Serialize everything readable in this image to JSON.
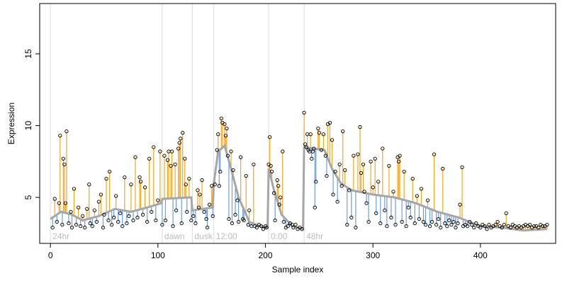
{
  "chart_data": {
    "type": "scatter",
    "title": "",
    "xlabel": "Sample index",
    "ylabel": "Expression",
    "xlim": [
      -10,
      470
    ],
    "ylim": [
      1.8,
      18.5
    ],
    "x_ticks": [
      0,
      100,
      200,
      300,
      400
    ],
    "y_ticks": [
      5,
      10,
      15
    ],
    "x_tick_labels": [
      "0",
      "100",
      "200",
      "300",
      "400"
    ],
    "y_tick_labels": [
      "5",
      "10",
      "15"
    ],
    "grid": false,
    "legend": "none",
    "colors": {
      "fitted": "#a6a6a6",
      "residual_above": "#f5a623",
      "residual_below": "#6f9ed8",
      "points": "#000000",
      "segment_lines": "#dcdcdc",
      "segment_labels": "#bdbdbd"
    },
    "segments": [
      {
        "x": 0,
        "label": "24hr"
      },
      {
        "x": 104,
        "label": "dawn"
      },
      {
        "x": 132,
        "label": "dusk"
      },
      {
        "x": 152,
        "label": "12:00"
      },
      {
        "x": 203,
        "label": "0:00"
      },
      {
        "x": 236,
        "label": "48hr"
      }
    ],
    "fitted_knots": [
      [
        0,
        3.5
      ],
      [
        10,
        4.0
      ],
      [
        20,
        3.8
      ],
      [
        30,
        3.4
      ],
      [
        45,
        3.7
      ],
      [
        60,
        4.2
      ],
      [
        75,
        4.0
      ],
      [
        90,
        4.3
      ],
      [
        103,
        4.6
      ],
      [
        104,
        4.9
      ],
      [
        131,
        5.0
      ],
      [
        132,
        4.1
      ],
      [
        151,
        4.3
      ],
      [
        152,
        6.0
      ],
      [
        156,
        8.2
      ],
      [
        162,
        8.6
      ],
      [
        168,
        7.0
      ],
      [
        175,
        5.0
      ],
      [
        185,
        3.3
      ],
      [
        195,
        3.0
      ],
      [
        202,
        2.9
      ],
      [
        203,
        7.0
      ],
      [
        208,
        5.5
      ],
      [
        215,
        3.8
      ],
      [
        225,
        3.0
      ],
      [
        235,
        2.8
      ],
      [
        236,
        8.5
      ],
      [
        245,
        8.4
      ],
      [
        255,
        8.3
      ],
      [
        262,
        7.0
      ],
      [
        270,
        6.0
      ],
      [
        280,
        5.5
      ],
      [
        300,
        5.2
      ],
      [
        320,
        5.0
      ],
      [
        340,
        4.6
      ],
      [
        360,
        4.0
      ],
      [
        380,
        3.6
      ],
      [
        400,
        3.0
      ],
      [
        420,
        2.9
      ],
      [
        440,
        2.7
      ],
      [
        462,
        2.8
      ]
    ],
    "points": [
      [
        2,
        2.9
      ],
      [
        4,
        4.9
      ],
      [
        6,
        3.3
      ],
      [
        8,
        4.6
      ],
      [
        9,
        9.3
      ],
      [
        11,
        3.1
      ],
      [
        12,
        7.7
      ],
      [
        13,
        7.3
      ],
      [
        14,
        4.6
      ],
      [
        15,
        9.6
      ],
      [
        17,
        3.2
      ],
      [
        19,
        4.0
      ],
      [
        20,
        2.9
      ],
      [
        22,
        5.6
      ],
      [
        24,
        3.1
      ],
      [
        26,
        4.3
      ],
      [
        28,
        3.0
      ],
      [
        30,
        3.7
      ],
      [
        32,
        2.9
      ],
      [
        34,
        4.2
      ],
      [
        36,
        5.9
      ],
      [
        37,
        3.2
      ],
      [
        39,
        3.0
      ],
      [
        41,
        4.1
      ],
      [
        43,
        3.3
      ],
      [
        45,
        4.7
      ],
      [
        47,
        5.2
      ],
      [
        49,
        2.9
      ],
      [
        50,
        3.8
      ],
      [
        52,
        6.3
      ],
      [
        54,
        3.4
      ],
      [
        55,
        6.8
      ],
      [
        57,
        3.1
      ],
      [
        59,
        3.6
      ],
      [
        61,
        5.1
      ],
      [
        63,
        3.3
      ],
      [
        65,
        3.9
      ],
      [
        67,
        3.0
      ],
      [
        69,
        6.4
      ],
      [
        71,
        3.2
      ],
      [
        73,
        3.7
      ],
      [
        75,
        5.9
      ],
      [
        77,
        3.4
      ],
      [
        79,
        7.8
      ],
      [
        81,
        3.6
      ],
      [
        83,
        6.4
      ],
      [
        84,
        6.1
      ],
      [
        86,
        3.8
      ],
      [
        88,
        5.7
      ],
      [
        90,
        3.3
      ],
      [
        92,
        7.7
      ],
      [
        94,
        4.0
      ],
      [
        96,
        8.5
      ],
      [
        98,
        3.4
      ],
      [
        100,
        4.8
      ],
      [
        102,
        8.2
      ],
      [
        104,
        3.1
      ],
      [
        106,
        7.9
      ],
      [
        107,
        3.4
      ],
      [
        109,
        7.6
      ],
      [
        110,
        8.2
      ],
      [
        112,
        7.2
      ],
      [
        113,
        8.2
      ],
      [
        114,
        3.0
      ],
      [
        116,
        7.3
      ],
      [
        117,
        4.1
      ],
      [
        119,
        8.4
      ],
      [
        120,
        8.8
      ],
      [
        121,
        9.1
      ],
      [
        122,
        3.2
      ],
      [
        123,
        9.5
      ],
      [
        125,
        7.7
      ],
      [
        126,
        5.9
      ],
      [
        127,
        4.0
      ],
      [
        129,
        6.3
      ],
      [
        131,
        3.4
      ],
      [
        133,
        3.7
      ],
      [
        135,
        3.2
      ],
      [
        137,
        5.5
      ],
      [
        138,
        4.3
      ],
      [
        139,
        5.2
      ],
      [
        141,
        6.2
      ],
      [
        143,
        4.0
      ],
      [
        145,
        3.5
      ],
      [
        146,
        2.9
      ],
      [
        148,
        4.5
      ],
      [
        150,
        5.8
      ],
      [
        151,
        3.7
      ],
      [
        153,
        5.9
      ],
      [
        155,
        8.3
      ],
      [
        156,
        9.4
      ],
      [
        157,
        5.8
      ],
      [
        158,
        6.8
      ],
      [
        159,
        10.5
      ],
      [
        160,
        10.2
      ],
      [
        162,
        10.1
      ],
      [
        163,
        9.3
      ],
      [
        164,
        9.8
      ],
      [
        165,
        7.9
      ],
      [
        166,
        3.5
      ],
      [
        168,
        8.2
      ],
      [
        169,
        3.2
      ],
      [
        170,
        6.9
      ],
      [
        172,
        3.8
      ],
      [
        174,
        4.8
      ],
      [
        175,
        3.3
      ],
      [
        177,
        7.8
      ],
      [
        179,
        3.5
      ],
      [
        180,
        3.4
      ],
      [
        182,
        6.5
      ],
      [
        184,
        3.1
      ],
      [
        185,
        4.1
      ],
      [
        187,
        3.0
      ],
      [
        189,
        7.3
      ],
      [
        190,
        3.0
      ],
      [
        192,
        2.9
      ],
      [
        194,
        3.1
      ],
      [
        196,
        3.0
      ],
      [
        198,
        2.8
      ],
      [
        200,
        3.0
      ],
      [
        201,
        2.9
      ],
      [
        203,
        7.3
      ],
      [
        204,
        9.2
      ],
      [
        205,
        7.2
      ],
      [
        206,
        6.8
      ],
      [
        208,
        5.3
      ],
      [
        209,
        3.4
      ],
      [
        211,
        6.2
      ],
      [
        212,
        5.8
      ],
      [
        213,
        4.5
      ],
      [
        214,
        5.0
      ],
      [
        216,
        8.2
      ],
      [
        217,
        3.3
      ],
      [
        219,
        2.9
      ],
      [
        221,
        3.0
      ],
      [
        223,
        3.2
      ],
      [
        225,
        3.1
      ],
      [
        226,
        2.9
      ],
      [
        228,
        3.1
      ],
      [
        230,
        2.8
      ],
      [
        232,
        2.9
      ],
      [
        234,
        2.8
      ],
      [
        236,
        10.9
      ],
      [
        237,
        8.7
      ],
      [
        238,
        8.5
      ],
      [
        239,
        9.4
      ],
      [
        240,
        8.3
      ],
      [
        241,
        8.2
      ],
      [
        242,
        9.4
      ],
      [
        243,
        7.7
      ],
      [
        244,
        8.2
      ],
      [
        245,
        8.4
      ],
      [
        246,
        4.3
      ],
      [
        247,
        6.1
      ],
      [
        249,
        9.8
      ],
      [
        250,
        9.5
      ],
      [
        252,
        8.3
      ],
      [
        254,
        9.4
      ],
      [
        256,
        7.9
      ],
      [
        257,
        6.5
      ],
      [
        258,
        10.1
      ],
      [
        260,
        10.2
      ],
      [
        262,
        9.0
      ],
      [
        263,
        5.2
      ],
      [
        265,
        6.8
      ],
      [
        267,
        4.7
      ],
      [
        269,
        7.3
      ],
      [
        271,
        5.8
      ],
      [
        272,
        9.6
      ],
      [
        274,
        6.9
      ],
      [
        276,
        3.1
      ],
      [
        278,
        5.5
      ],
      [
        280,
        3.6
      ],
      [
        282,
        7.9
      ],
      [
        284,
        2.9
      ],
      [
        286,
        8.0
      ],
      [
        288,
        9.9
      ],
      [
        289,
        6.7
      ],
      [
        291,
        7.3
      ],
      [
        292,
        5.4
      ],
      [
        294,
        4.6
      ],
      [
        296,
        3.3
      ],
      [
        298,
        7.5
      ],
      [
        300,
        5.7
      ],
      [
        302,
        7.7
      ],
      [
        303,
        3.9
      ],
      [
        305,
        6.1
      ],
      [
        307,
        3.2
      ],
      [
        309,
        8.4
      ],
      [
        311,
        4.1
      ],
      [
        313,
        3.0
      ],
      [
        315,
        7.2
      ],
      [
        317,
        3.6
      ],
      [
        319,
        5.4
      ],
      [
        321,
        3.1
      ],
      [
        323,
        7.8
      ],
      [
        324,
        7.5
      ],
      [
        325,
        7.9
      ],
      [
        327,
        3.3
      ],
      [
        329,
        6.8
      ],
      [
        331,
        3.0
      ],
      [
        333,
        4.3
      ],
      [
        335,
        3.6
      ],
      [
        337,
        6.3
      ],
      [
        339,
        3.2
      ],
      [
        341,
        5.1
      ],
      [
        343,
        3.5
      ],
      [
        345,
        5.6
      ],
      [
        347,
        3.3
      ],
      [
        349,
        3.1
      ],
      [
        351,
        4.8
      ],
      [
        353,
        3.0
      ],
      [
        355,
        3.3
      ],
      [
        357,
        8.0
      ],
      [
        359,
        3.1
      ],
      [
        361,
        3.5
      ],
      [
        363,
        2.9
      ],
      [
        365,
        7.0
      ],
      [
        367,
        3.2
      ],
      [
        369,
        3.0
      ],
      [
        371,
        3.4
      ],
      [
        373,
        3.1
      ],
      [
        375,
        3.3
      ],
      [
        377,
        2.9
      ],
      [
        379,
        3.2
      ],
      [
        381,
        4.5
      ],
      [
        383,
        7.1
      ],
      [
        384,
        3.0
      ],
      [
        386,
        3.1
      ],
      [
        388,
        3.0
      ],
      [
        390,
        3.3
      ],
      [
        392,
        3.1
      ],
      [
        394,
        2.9
      ],
      [
        396,
        3.2
      ],
      [
        398,
        3.0
      ],
      [
        400,
        2.9
      ],
      [
        402,
        3.1
      ],
      [
        404,
        3.0
      ],
      [
        406,
        2.8
      ],
      [
        408,
        3.1
      ],
      [
        410,
        2.9
      ],
      [
        412,
        3.0
      ],
      [
        414,
        3.1
      ],
      [
        416,
        3.3
      ],
      [
        418,
        3.0
      ],
      [
        420,
        2.9
      ],
      [
        422,
        3.1
      ],
      [
        424,
        3.9
      ],
      [
        426,
        3.0
      ],
      [
        428,
        2.9
      ],
      [
        430,
        3.1
      ],
      [
        432,
        3.0
      ],
      [
        434,
        2.9
      ],
      [
        436,
        3.0
      ],
      [
        438,
        2.9
      ],
      [
        440,
        3.0
      ],
      [
        442,
        3.1
      ],
      [
        444,
        3.0
      ],
      [
        446,
        3.1
      ],
      [
        448,
        2.9
      ],
      [
        450,
        3.0
      ],
      [
        452,
        3.0
      ],
      [
        454,
        2.9
      ],
      [
        456,
        3.1
      ],
      [
        458,
        3.0
      ],
      [
        460,
        3.0
      ],
      [
        462,
        3.1
      ]
    ]
  }
}
